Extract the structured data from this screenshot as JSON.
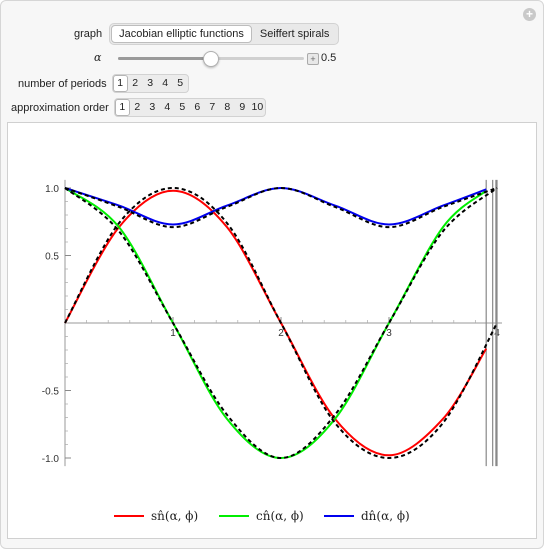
{
  "controls": {
    "graph_label": "graph",
    "graph_options": [
      "Jacobian elliptic functions",
      "Seiffert spirals"
    ],
    "graph_selected": 0,
    "alpha_label": "α",
    "alpha_value": "0.5",
    "alpha_fraction": 0.5,
    "periods_label": "number of periods",
    "periods_options": [
      "1",
      "2",
      "3",
      "4",
      "5"
    ],
    "periods_selected": 0,
    "order_label": "approximation order",
    "order_options": [
      "1",
      "2",
      "3",
      "4",
      "5",
      "6",
      "7",
      "8",
      "9",
      "10"
    ],
    "order_selected": 0
  },
  "legend": {
    "sn_label": "sn̂(α, ϕ)",
    "cn_label": "cn̂(α, ϕ)",
    "dn_label": "dn̂(α, ϕ)"
  },
  "colors": {
    "sn": "#ff0000",
    "cn": "#00ee00",
    "dn": "#0000ee",
    "reference": "#000000"
  },
  "chart_data": {
    "type": "line",
    "title": "",
    "xlabel": "",
    "ylabel": "",
    "xlim": [
      0,
      4
    ],
    "ylim": [
      -1,
      1
    ],
    "x_ticks": [
      "1",
      "2",
      "3",
      "4"
    ],
    "y_ticks": [
      "1.0",
      "0.5",
      "-0.5",
      "-1.0"
    ],
    "y_tick_values": [
      1.0,
      0.5,
      -0.5,
      -1.0
    ],
    "vertical_lines_x": [
      3.9,
      3.96,
      3.99,
      4.0
    ],
    "series": [
      {
        "name": "sn̂(α, ϕ)",
        "key": "sn",
        "style": "solid",
        "x": [
          0,
          0.5,
          1,
          1.5,
          2,
          2.5,
          3,
          3.5,
          3.9
        ],
        "y": [
          0,
          0.71,
          0.98,
          0.71,
          0,
          -0.71,
          -0.98,
          -0.71,
          -0.19
        ]
      },
      {
        "name": "cn̂(α, ϕ)",
        "key": "cn",
        "style": "solid",
        "x": [
          0,
          0.5,
          1,
          1.5,
          2,
          2.5,
          3,
          3.5,
          3.9
        ],
        "y": [
          1,
          0.71,
          0,
          -0.71,
          -1,
          -0.71,
          0,
          0.71,
          0.98
        ]
      },
      {
        "name": "dn̂(α, ϕ)",
        "key": "dn",
        "style": "solid",
        "x": [
          0,
          0.5,
          1,
          1.5,
          2,
          2.5,
          3,
          3.5,
          3.9
        ],
        "y": [
          1,
          0.87,
          0.73,
          0.87,
          1,
          0.87,
          0.73,
          0.87,
          0.99
        ]
      },
      {
        "name": "",
        "key": "sn_ref",
        "style": "dashed",
        "x": [
          0,
          0.5,
          1,
          1.5,
          2,
          2.5,
          3,
          3.5,
          4
        ],
        "y": [
          0,
          0.74,
          1,
          0.74,
          0,
          -0.74,
          -1,
          -0.74,
          0
        ]
      },
      {
        "name": "",
        "key": "cn_ref",
        "style": "dashed",
        "x": [
          0,
          0.5,
          1,
          1.5,
          2,
          2.5,
          3,
          3.5,
          4
        ],
        "y": [
          1,
          0.68,
          0,
          -0.68,
          -1,
          -0.68,
          0,
          0.68,
          1
        ]
      },
      {
        "name": "",
        "key": "dn_ref",
        "style": "dashed",
        "x": [
          0,
          0.5,
          1,
          1.5,
          2,
          2.5,
          3,
          3.5,
          4
        ],
        "y": [
          1,
          0.86,
          0.71,
          0.86,
          1,
          0.86,
          0.71,
          0.86,
          1
        ]
      }
    ]
  }
}
